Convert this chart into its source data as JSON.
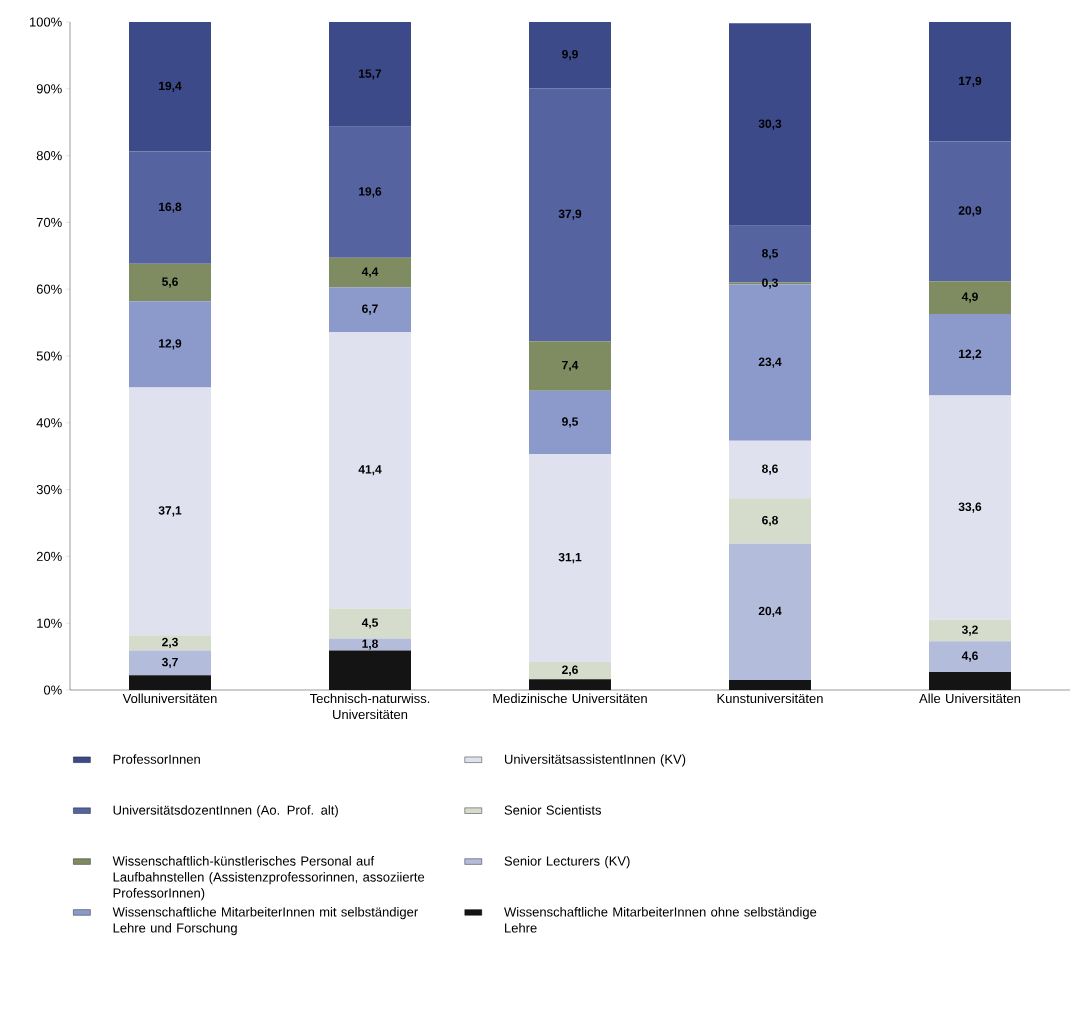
{
  "chart_data": {
    "type": "bar",
    "stacked": true,
    "categories": [
      "Volluniversitäten",
      "Technisch-naturwiss. Universitäten",
      "Medizinische Universitäten",
      "Kunstuniversitäten",
      "Alle Universitäten"
    ],
    "ylim": [
      0,
      100
    ],
    "yticks": [
      {
        "value": 0,
        "label": "0%"
      },
      {
        "value": 10,
        "label": "10%"
      },
      {
        "value": 20,
        "label": "20%"
      },
      {
        "value": 30,
        "label": "30%"
      },
      {
        "value": 40,
        "label": "40%"
      },
      {
        "value": 50,
        "label": "50%"
      },
      {
        "value": 60,
        "label": "60%"
      },
      {
        "value": 70,
        "label": "70%"
      },
      {
        "value": 80,
        "label": "80%"
      },
      {
        "value": 90,
        "label": "90%"
      },
      {
        "value": 100,
        "label": "100%"
      }
    ],
    "legend": "bottom",
    "grid": false,
    "series": [
      {
        "name": "Wissenschaftliche MitarbeiterInnen ohne selbständige Lehre",
        "color": "#141414",
        "values": [
          2.2,
          5.9,
          1.6,
          1.5,
          2.7
        ],
        "value_labels": [
          null,
          null,
          null,
          null,
          null
        ]
      },
      {
        "name": "Senior Lecturers (KV)",
        "color": "#b4bcdb",
        "values": [
          3.7,
          1.8,
          0,
          20.4,
          4.6
        ],
        "value_labels": [
          "3,7",
          "1,8",
          null,
          "20,4",
          "4,6"
        ]
      },
      {
        "name": "Senior Scientists",
        "color": "#d5dccb",
        "values": [
          2.3,
          4.5,
          2.6,
          6.8,
          3.2
        ],
        "value_labels": [
          "2,3",
          "4,5",
          "2,6",
          "6,8",
          "3,2"
        ]
      },
      {
        "name": "UniversitätsassistentInnen (KV)",
        "color": "#dfe1ef",
        "values": [
          37.1,
          41.4,
          31.1,
          8.6,
          33.6
        ],
        "value_labels": [
          "37,1",
          "41,4",
          "31,1",
          "8,6",
          "33,6"
        ]
      },
      {
        "name": "Wissenschaftliche MitarbeiterInnen mit selbständiger Lehre und Forschung",
        "color": "#8c9acb",
        "values": [
          12.9,
          6.7,
          9.5,
          23.4,
          12.2
        ],
        "value_labels": [
          "12,9",
          "6,7",
          "9,5",
          "23,4",
          "12,2"
        ]
      },
      {
        "name": "Wissenschaftlich-künstlerisches Personal auf Laufbahnstellen (Assistenzprofessorinnen, assoziierte ProfessorInnen)",
        "color": "#7f8c62",
        "values": [
          5.6,
          4.4,
          7.4,
          0.3,
          4.9
        ],
        "value_labels": [
          "5,6",
          "4,4",
          "7,4",
          "0,3",
          "4,9"
        ]
      },
      {
        "name": "UniversitätsdozentInnen (Ao. Prof. alt)",
        "color": "#5563a0",
        "values": [
          16.8,
          19.6,
          37.9,
          8.5,
          20.9
        ],
        "value_labels": [
          "16,8",
          "19,6",
          "37,9",
          "8,5",
          "20,9"
        ]
      },
      {
        "name": "ProfessorInnen",
        "color": "#3d4a8a",
        "values": [
          19.4,
          15.7,
          9.9,
          30.3,
          17.9
        ],
        "value_labels": [
          "19,4",
          "15,7",
          "9,9",
          "30,3",
          "17,9"
        ]
      }
    ]
  }
}
